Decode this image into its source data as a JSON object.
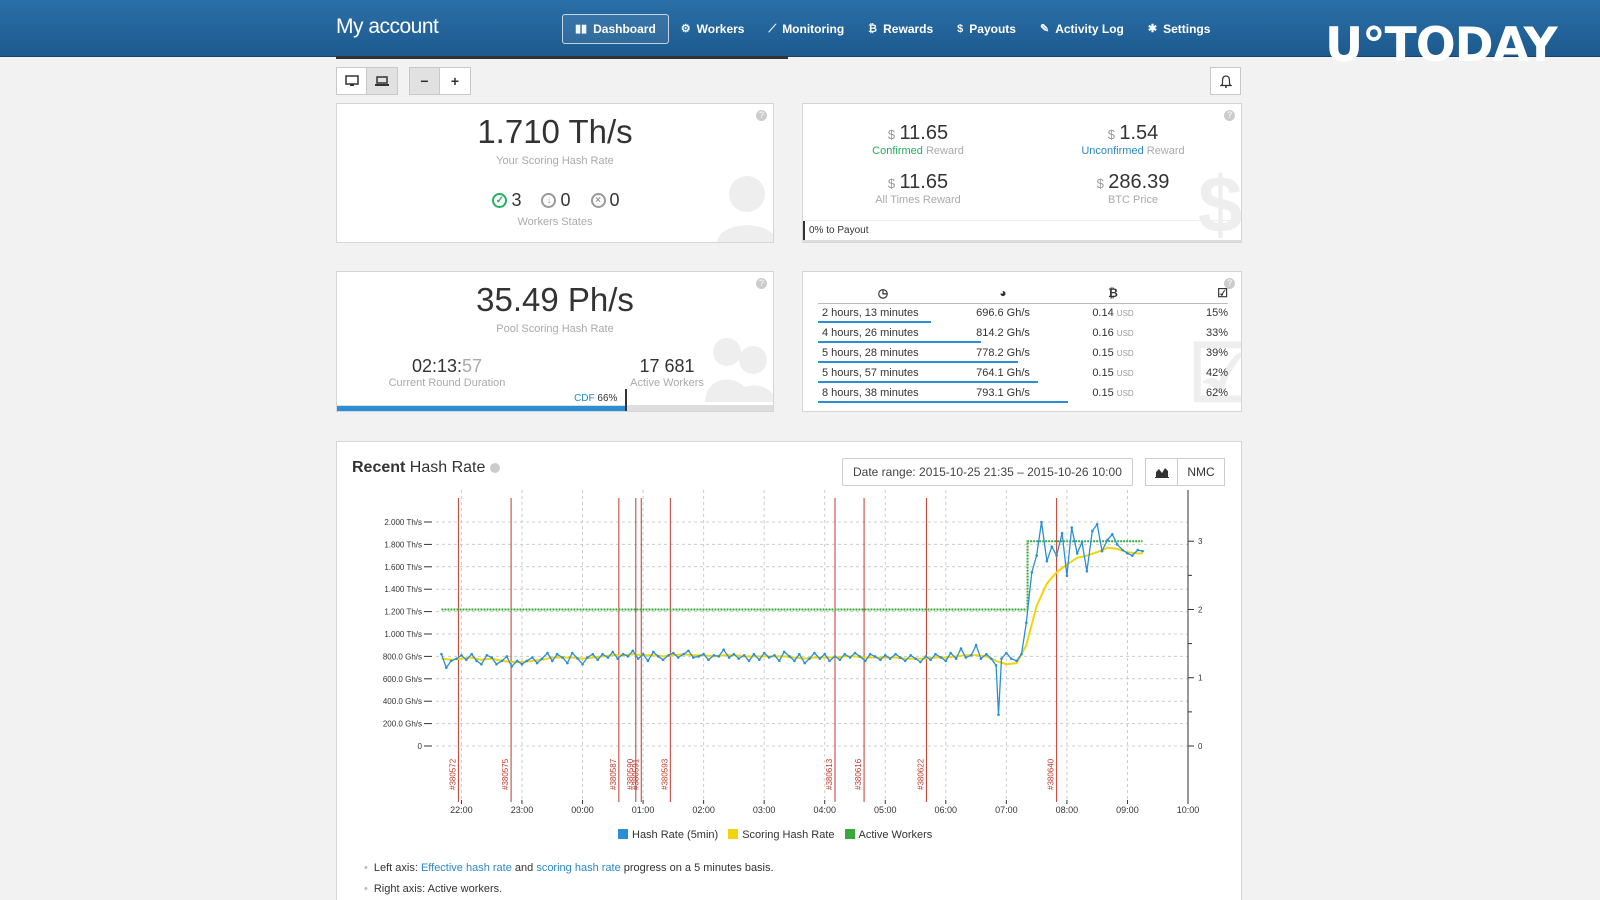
{
  "header": {
    "title": "My account",
    "nav": [
      {
        "label": "Dashboard",
        "icon": "dashboard-icon",
        "glyph": "▮▮",
        "active": true
      },
      {
        "label": "Workers",
        "icon": "workers-icon",
        "glyph": "⚙",
        "active": false
      },
      {
        "label": "Monitoring",
        "icon": "monitoring-icon",
        "glyph": "⟋",
        "active": false
      },
      {
        "label": "Rewards",
        "icon": "bitcoin-icon",
        "glyph": "₿",
        "active": false
      },
      {
        "label": "Payouts",
        "icon": "dollar-icon",
        "glyph": "$",
        "active": false
      },
      {
        "label": "Activity Log",
        "icon": "log-icon",
        "glyph": "✎",
        "active": false
      },
      {
        "label": "Settings",
        "icon": "gear-icon",
        "glyph": "✱",
        "active": false
      }
    ],
    "watermark": "U°TODAY"
  },
  "toolbar": {
    "zoom_out": "−",
    "zoom_in": "+",
    "desktop_glyph": "▭",
    "laptop_glyph": "▭",
    "bell_glyph": "🔔"
  },
  "hashrate_card": {
    "value": "1.710 Th/s",
    "label": "Your Scoring Hash Rate",
    "states": [
      {
        "glyph": "✓",
        "count": "3",
        "color": "#27ae60"
      },
      {
        "glyph": "↓",
        "count": "0",
        "color": "#999999"
      },
      {
        "glyph": "×",
        "count": "0",
        "color": "#999999"
      }
    ],
    "states_label": "Workers States"
  },
  "reward_card": {
    "confirmed": {
      "currency": "$",
      "value": "11.65",
      "label_colored": "Confirmed",
      "label_rest": " Reward",
      "color": "#27ae60"
    },
    "unconfirmed": {
      "currency": "$",
      "value": "1.54",
      "label_colored": "Unconfirmed",
      "label_rest": " Reward",
      "color": "#2a88c9"
    },
    "all_times": {
      "currency": "$",
      "value": "11.65",
      "label": "All Times Reward"
    },
    "btc_price": {
      "currency": "$",
      "value": "286.39",
      "label": "BTC Price"
    },
    "payout_progress_text": "0% to Payout",
    "payout_progress": 0
  },
  "pool_card": {
    "value": "35.49 Ph/s",
    "label": "Pool Scoring Hash Rate",
    "round_duration_main": "02:13:",
    "round_duration_sec": "57",
    "round_duration_label": "Current Round Duration",
    "active_workers": "17 681",
    "active_workers_label": "Active Workers",
    "cdf_label": "CDF",
    "cdf_value": "66%",
    "cdf_fraction": 0.66
  },
  "rounds_table": {
    "header_icons": [
      "clock-icon",
      "pie-icon",
      "bitcoin-icon",
      "checkbox-icon"
    ],
    "header_glyphs": [
      "◷",
      "◕",
      "₿",
      "☑"
    ],
    "rows": [
      {
        "duration": "2 hours, 13 minutes",
        "rate": "696.6 Gh/s",
        "reward": "0.14",
        "unit": "USD",
        "luck": "15%"
      },
      {
        "duration": "4 hours, 26 minutes",
        "rate": "814.2 Gh/s",
        "reward": "0.16",
        "unit": "USD",
        "luck": "33%"
      },
      {
        "duration": "5 hours, 28 minutes",
        "rate": "778.2 Gh/s",
        "reward": "0.15",
        "unit": "USD",
        "luck": "39%"
      },
      {
        "duration": "5 hours, 57 minutes",
        "rate": "764.1 Gh/s",
        "reward": "0.15",
        "unit": "USD",
        "luck": "42%"
      },
      {
        "duration": "8 hours, 38 minutes",
        "rate": "793.1 Gh/s",
        "reward": "0.15",
        "unit": "USD",
        "luck": "62%"
      }
    ]
  },
  "chart_panel": {
    "title_bold": "Recent",
    "title_rest": " Hash Rate",
    "date_range": "Date range: 2015-10-25 21:35 – 2015-10-26 10:00",
    "nmc_label": "NMC",
    "notes": {
      "line1_prefix": "Left axis: ",
      "line1_link1": "Effective hash rate",
      "line1_mid": " and ",
      "line1_link2": "scoring hash rate",
      "line1_suffix": " progress on a 5 minutes basis.",
      "line2": "Right axis: Active workers."
    }
  },
  "chart_data": {
    "type": "line",
    "title": "Recent Hash Rate",
    "x_ticks": [
      "22:00",
      "23:00",
      "00:00",
      "01:00",
      "02:00",
      "03:00",
      "04:00",
      "05:00",
      "06:00",
      "07:00",
      "08:00",
      "09:00",
      "10:00"
    ],
    "y_left_ticks": [
      "0",
      "200.0 Gh/s",
      "400.0 Gh/s",
      "600.0 Gh/s",
      "800.0 Gh/s",
      "1.000 Th/s",
      "1.200 Th/s",
      "1.400 Th/s",
      "1.600 Th/s",
      "1.800 Th/s",
      "2.000 Th/s"
    ],
    "y_left_range_ghs": [
      0,
      2000
    ],
    "y_right_ticks": [
      "0",
      "1",
      "2",
      "3"
    ],
    "y_right_range": [
      0,
      3
    ],
    "x_range_hours": [
      21.58,
      10.0
    ],
    "series": [
      {
        "name": "Hash Rate (5min)",
        "color": "#2c8fd6",
        "points": [
          [
            21.67,
            820
          ],
          [
            21.75,
            700
          ],
          [
            21.83,
            760
          ],
          [
            21.92,
            780
          ],
          [
            22.0,
            810
          ],
          [
            22.08,
            770
          ],
          [
            22.17,
            820
          ],
          [
            22.25,
            760
          ],
          [
            22.33,
            730
          ],
          [
            22.42,
            810
          ],
          [
            22.5,
            790
          ],
          [
            22.58,
            730
          ],
          [
            22.67,
            760
          ],
          [
            22.75,
            800
          ],
          [
            22.83,
            710
          ],
          [
            22.92,
            760
          ],
          [
            23.0,
            730
          ],
          [
            23.08,
            760
          ],
          [
            23.17,
            790
          ],
          [
            23.25,
            740
          ],
          [
            23.33,
            780
          ],
          [
            23.42,
            830
          ],
          [
            23.5,
            760
          ],
          [
            23.58,
            820
          ],
          [
            23.67,
            790
          ],
          [
            23.75,
            740
          ],
          [
            23.83,
            830
          ],
          [
            23.92,
            780
          ],
          [
            24.0,
            730
          ],
          [
            24.08,
            790
          ],
          [
            24.17,
            820
          ],
          [
            24.25,
            770
          ],
          [
            24.33,
            820
          ],
          [
            24.42,
            790
          ],
          [
            24.5,
            840
          ],
          [
            24.58,
            780
          ],
          [
            24.67,
            820
          ],
          [
            24.75,
            800
          ],
          [
            24.83,
            850
          ],
          [
            24.92,
            780
          ],
          [
            25.0,
            820
          ],
          [
            25.08,
            760
          ],
          [
            25.17,
            840
          ],
          [
            25.25,
            800
          ],
          [
            25.33,
            770
          ],
          [
            25.42,
            810
          ],
          [
            25.5,
            830
          ],
          [
            25.58,
            790
          ],
          [
            25.67,
            820
          ],
          [
            25.75,
            850
          ],
          [
            25.83,
            790
          ],
          [
            25.92,
            800
          ],
          [
            26.0,
            820
          ],
          [
            26.08,
            770
          ],
          [
            26.17,
            810
          ],
          [
            26.25,
            800
          ],
          [
            26.33,
            860
          ],
          [
            26.42,
            790
          ],
          [
            26.5,
            820
          ],
          [
            26.58,
            780
          ],
          [
            26.67,
            810
          ],
          [
            26.75,
            760
          ],
          [
            26.83,
            820
          ],
          [
            26.92,
            770
          ],
          [
            27.0,
            830
          ],
          [
            27.08,
            790
          ],
          [
            27.17,
            810
          ],
          [
            27.25,
            760
          ],
          [
            27.33,
            840
          ],
          [
            27.42,
            800
          ],
          [
            27.5,
            760
          ],
          [
            27.58,
            820
          ],
          [
            27.67,
            740
          ],
          [
            27.75,
            780
          ],
          [
            27.83,
            830
          ],
          [
            27.92,
            780
          ],
          [
            28.0,
            820
          ],
          [
            28.08,
            760
          ],
          [
            28.17,
            800
          ],
          [
            28.25,
            770
          ],
          [
            28.33,
            820
          ],
          [
            28.42,
            790
          ],
          [
            28.5,
            830
          ],
          [
            28.58,
            800
          ],
          [
            28.67,
            760
          ],
          [
            28.75,
            820
          ],
          [
            28.83,
            800
          ],
          [
            28.92,
            770
          ],
          [
            29.0,
            810
          ],
          [
            29.08,
            780
          ],
          [
            29.17,
            820
          ],
          [
            29.25,
            790
          ],
          [
            29.33,
            760
          ],
          [
            29.42,
            810
          ],
          [
            29.5,
            780
          ],
          [
            29.58,
            750
          ],
          [
            29.67,
            800
          ],
          [
            29.75,
            770
          ],
          [
            29.83,
            820
          ],
          [
            29.92,
            790
          ],
          [
            30.0,
            760
          ],
          [
            30.08,
            830
          ],
          [
            30.17,
            780
          ],
          [
            30.25,
            870
          ],
          [
            30.33,
            790
          ],
          [
            30.42,
            810
          ],
          [
            30.5,
            900
          ],
          [
            30.58,
            780
          ],
          [
            30.67,
            820
          ],
          [
            30.75,
            780
          ],
          [
            30.83,
            720
          ],
          [
            30.87,
            280
          ],
          [
            30.92,
            780
          ],
          [
            31.0,
            830
          ],
          [
            31.08,
            780
          ],
          [
            31.17,
            760
          ],
          [
            31.25,
            820
          ],
          [
            31.33,
            1100
          ],
          [
            31.42,
            1550
          ],
          [
            31.5,
            1700
          ],
          [
            31.58,
            2000
          ],
          [
            31.67,
            1650
          ],
          [
            31.75,
            1780
          ],
          [
            31.83,
            1700
          ],
          [
            31.92,
            1900
          ],
          [
            32.0,
            1520
          ],
          [
            32.08,
            1950
          ],
          [
            32.17,
            1720
          ],
          [
            32.25,
            1820
          ],
          [
            32.33,
            1560
          ],
          [
            32.42,
            1920
          ],
          [
            32.5,
            1980
          ],
          [
            32.58,
            1740
          ],
          [
            32.67,
            1840
          ],
          [
            32.75,
            1890
          ],
          [
            32.83,
            1800
          ],
          [
            32.92,
            1750
          ],
          [
            33.0,
            1720
          ],
          [
            33.08,
            1700
          ],
          [
            33.17,
            1750
          ],
          [
            33.25,
            1740
          ]
        ]
      },
      {
        "name": "Scoring Hash Rate",
        "color": "#f2d40d",
        "points": [
          [
            21.67,
            780
          ],
          [
            21.83,
            770
          ],
          [
            22.0,
            780
          ],
          [
            22.17,
            790
          ],
          [
            22.33,
            770
          ],
          [
            22.5,
            780
          ],
          [
            22.67,
            760
          ],
          [
            22.83,
            750
          ],
          [
            23.0,
            750
          ],
          [
            23.17,
            760
          ],
          [
            23.33,
            770
          ],
          [
            23.5,
            790
          ],
          [
            23.67,
            790
          ],
          [
            23.83,
            790
          ],
          [
            24.0,
            780
          ],
          [
            24.17,
            790
          ],
          [
            24.33,
            800
          ],
          [
            24.5,
            810
          ],
          [
            24.67,
            810
          ],
          [
            24.83,
            820
          ],
          [
            25.0,
            810
          ],
          [
            25.17,
            810
          ],
          [
            25.33,
            800
          ],
          [
            25.5,
            810
          ],
          [
            25.67,
            820
          ],
          [
            25.83,
            810
          ],
          [
            26.0,
            810
          ],
          [
            26.17,
            800
          ],
          [
            26.33,
            810
          ],
          [
            26.5,
            810
          ],
          [
            26.67,
            800
          ],
          [
            26.83,
            800
          ],
          [
            27.0,
            800
          ],
          [
            27.17,
            800
          ],
          [
            27.33,
            800
          ],
          [
            27.5,
            790
          ],
          [
            27.67,
            780
          ],
          [
            27.83,
            790
          ],
          [
            28.0,
            790
          ],
          [
            28.17,
            790
          ],
          [
            28.33,
            800
          ],
          [
            28.5,
            800
          ],
          [
            28.67,
            790
          ],
          [
            28.83,
            790
          ],
          [
            29.0,
            790
          ],
          [
            29.17,
            790
          ],
          [
            29.33,
            780
          ],
          [
            29.5,
            780
          ],
          [
            29.67,
            780
          ],
          [
            29.83,
            790
          ],
          [
            30.0,
            790
          ],
          [
            30.17,
            800
          ],
          [
            30.33,
            810
          ],
          [
            30.5,
            810
          ],
          [
            30.67,
            800
          ],
          [
            30.83,
            760
          ],
          [
            31.0,
            730
          ],
          [
            31.17,
            740
          ],
          [
            31.33,
            900
          ],
          [
            31.5,
            1250
          ],
          [
            31.67,
            1450
          ],
          [
            31.83,
            1550
          ],
          [
            32.0,
            1620
          ],
          [
            32.17,
            1680
          ],
          [
            32.33,
            1700
          ],
          [
            32.5,
            1730
          ],
          [
            32.67,
            1770
          ],
          [
            32.83,
            1760
          ],
          [
            33.0,
            1730
          ],
          [
            33.17,
            1720
          ],
          [
            33.25,
            1720
          ]
        ]
      },
      {
        "name": "Active Workers",
        "color": "#36a93a",
        "axis": "right",
        "points": [
          [
            21.67,
            2
          ],
          [
            31.33,
            2
          ],
          [
            31.35,
            3
          ],
          [
            33.25,
            3
          ]
        ]
      }
    ],
    "blocks": [
      {
        "label": "#380572",
        "x": 21.95
      },
      {
        "label": "#380575",
        "x": 22.82
      },
      {
        "label": "#380587",
        "x": 24.6
      },
      {
        "label": "#380590",
        "x": 24.88
      },
      {
        "label": "#380591",
        "x": 24.97
      },
      {
        "label": "#380593",
        "x": 25.45
      },
      {
        "label": "#380613",
        "x": 28.17
      },
      {
        "label": "#380616",
        "x": 28.65
      },
      {
        "label": "#380622",
        "x": 29.68
      },
      {
        "label": "#380640",
        "x": 31.83
      }
    ],
    "legend": "bottom"
  }
}
